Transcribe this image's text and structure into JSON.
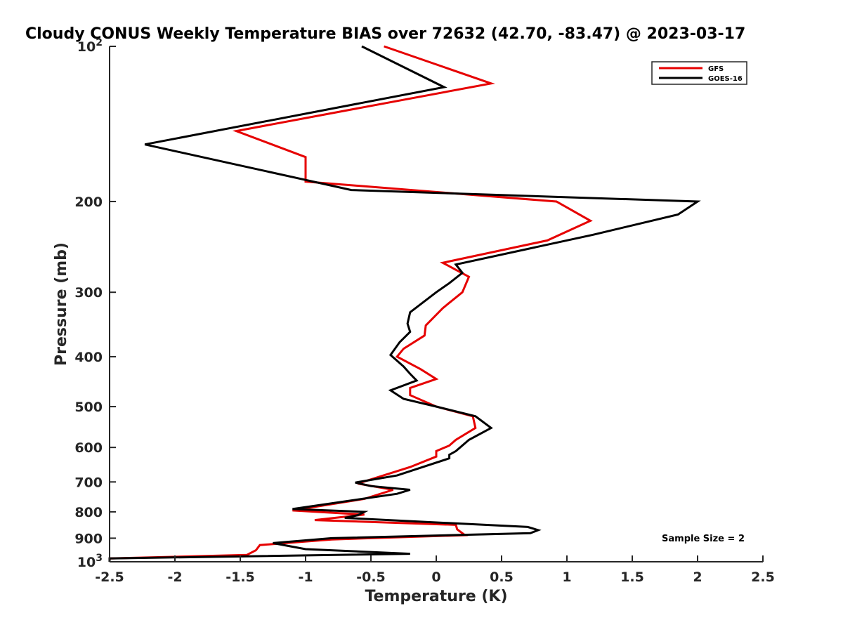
{
  "chart_data": {
    "type": "line",
    "title": "Cloudy CONUS Weekly Temperature BIAS over 72632 (42.70, -83.47) @ 2023-03-17",
    "xlabel": "Temperature (K)",
    "ylabel": "Pressure (mb)",
    "xlim": [
      -2.5,
      2.5
    ],
    "ylim": [
      100,
      1000
    ],
    "y_scale": "log",
    "y_reversed": true,
    "x_ticks": [
      -2.5,
      -2,
      -1.5,
      -1,
      -0.5,
      0,
      0.5,
      1,
      1.5,
      2,
      2.5
    ],
    "x_tick_labels": [
      "-2.5",
      "-2",
      "-1.5",
      "-1",
      "-0.5",
      "0",
      "0.5",
      "1",
      "1.5",
      "2",
      "2.5"
    ],
    "y_ticks": [
      100,
      200,
      300,
      400,
      500,
      600,
      700,
      800,
      900,
      1000
    ],
    "y_tick_labels": [
      "10²",
      "200",
      "300",
      "400",
      "500",
      "600",
      "700",
      "800",
      "900",
      "10³"
    ],
    "grid": false,
    "legend_position": "top-right",
    "annotation": "Sample Size = 2",
    "series": [
      {
        "name": "GFS",
        "color": "#e60000",
        "points": [
          [
            -0.4,
            100
          ],
          [
            0.42,
            118
          ],
          [
            -1.53,
            146
          ],
          [
            -1.0,
            164
          ],
          [
            -1.0,
            183
          ],
          [
            0.92,
            200
          ],
          [
            1.18,
            218
          ],
          [
            0.85,
            238
          ],
          [
            0.05,
            263
          ],
          [
            0.25,
            280
          ],
          [
            0.2,
            300
          ],
          [
            0.05,
            322
          ],
          [
            -0.08,
            348
          ],
          [
            -0.09,
            364
          ],
          [
            -0.25,
            386
          ],
          [
            -0.3,
            400
          ],
          [
            -0.12,
            423
          ],
          [
            0.0,
            442
          ],
          [
            -0.2,
            460
          ],
          [
            -0.2,
            475
          ],
          [
            0.0,
            500
          ],
          [
            0.28,
            522
          ],
          [
            0.3,
            550
          ],
          [
            0.15,
            580
          ],
          [
            0.1,
            595
          ],
          [
            0.0,
            610
          ],
          [
            0.0,
            625
          ],
          [
            -0.2,
            655
          ],
          [
            -0.6,
            705
          ],
          [
            -0.33,
            725
          ],
          [
            -0.55,
            755
          ],
          [
            -1.1,
            795
          ],
          [
            -0.55,
            810
          ],
          [
            -0.93,
            830
          ],
          [
            0.15,
            848
          ],
          [
            0.16,
            865
          ],
          [
            0.22,
            888
          ],
          [
            -0.8,
            905
          ],
          [
            -1.35,
            928
          ],
          [
            -1.38,
            950
          ],
          [
            -1.45,
            970
          ],
          [
            -2.5,
            985
          ],
          [
            -2.5,
            1000
          ]
        ]
      },
      {
        "name": "GOES-16",
        "color": "#000000",
        "points": [
          [
            -0.57,
            100
          ],
          [
            0.06,
            120
          ],
          [
            -2.23,
            155
          ],
          [
            -0.65,
            190
          ],
          [
            2.0,
            200
          ],
          [
            1.85,
            212
          ],
          [
            1.2,
            232
          ],
          [
            0.15,
            265
          ],
          [
            0.2,
            275
          ],
          [
            0.1,
            288
          ],
          [
            0.0,
            300
          ],
          [
            -0.2,
            328
          ],
          [
            -0.22,
            345
          ],
          [
            -0.2,
            358
          ],
          [
            -0.28,
            375
          ],
          [
            -0.35,
            397
          ],
          [
            -0.25,
            418
          ],
          [
            -0.2,
            432
          ],
          [
            -0.15,
            445
          ],
          [
            -0.35,
            465
          ],
          [
            -0.25,
            483
          ],
          [
            0.0,
            500
          ],
          [
            0.3,
            522
          ],
          [
            0.42,
            550
          ],
          [
            0.25,
            580
          ],
          [
            0.15,
            610
          ],
          [
            0.1,
            620
          ],
          [
            0.1,
            630
          ],
          [
            -0.3,
            680
          ],
          [
            -0.62,
            702
          ],
          [
            -0.5,
            713
          ],
          [
            -0.2,
            725
          ],
          [
            -0.3,
            738
          ],
          [
            -1.1,
            790
          ],
          [
            -0.55,
            800
          ],
          [
            -0.6,
            812
          ],
          [
            -0.7,
            822
          ],
          [
            0.7,
            856
          ],
          [
            0.78,
            868
          ],
          [
            0.72,
            880
          ],
          [
            -0.8,
            900
          ],
          [
            -1.25,
            920
          ],
          [
            -1.0,
            945
          ],
          [
            -0.2,
            965
          ],
          [
            -2.5,
            985
          ],
          [
            -2.5,
            1000
          ]
        ]
      }
    ]
  }
}
